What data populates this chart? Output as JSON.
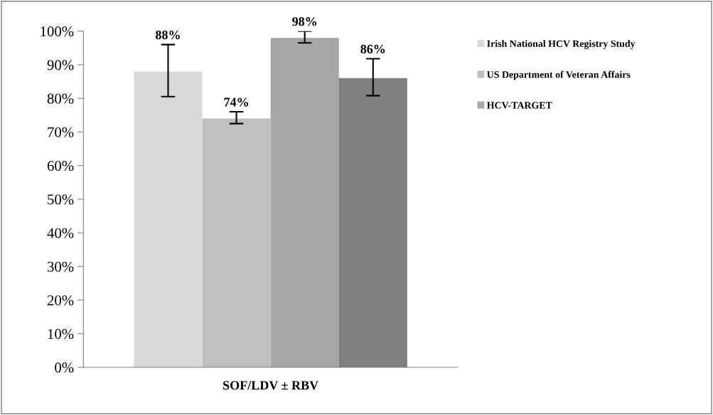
{
  "chart_data": {
    "type": "bar",
    "xlabel": "SOF/LDV ± RBV",
    "categories": [
      null
    ],
    "series": [
      {
        "name": "Irish National HCV Registry Study",
        "color": "#d9d9d9",
        "values": [
          88
        ],
        "errors": [
          [
            80.5,
            96
          ]
        ],
        "value_labels": [
          "88%"
        ]
      },
      {
        "name": "US Department of Veteran Affairs",
        "color": "#bfbfbf",
        "values": [
          74
        ],
        "errors": [
          [
            72.5,
            76
          ]
        ],
        "value_labels": [
          "74%"
        ]
      },
      {
        "name": "HCV-TARGET",
        "color": "#a6a6a6",
        "values": [
          98
        ],
        "errors": [
          [
            96.5,
            100
          ]
        ],
        "value_labels": [
          "98%"
        ]
      },
      {
        "color": "#7f7f7f",
        "values": [
          86
        ],
        "errors": [
          [
            80.8,
            91.8
          ]
        ],
        "value_labels": [
          "86%"
        ]
      }
    ],
    "ylim": [
      0,
      100
    ],
    "yticks": [
      {
        "value": 0,
        "label": "0%"
      },
      {
        "value": 10,
        "label": "10%"
      },
      {
        "value": 20,
        "label": "20%"
      },
      {
        "value": 30,
        "label": "30%"
      },
      {
        "value": 40,
        "label": "40%"
      },
      {
        "value": 50,
        "label": "50%"
      },
      {
        "value": 60,
        "label": "60%"
      },
      {
        "value": 70,
        "label": "70%"
      },
      {
        "value": 80,
        "label": "80%"
      },
      {
        "value": 90,
        "label": "90%"
      },
      {
        "value": 100,
        "label": "100%"
      }
    ],
    "grid": false,
    "legend": "right"
  }
}
